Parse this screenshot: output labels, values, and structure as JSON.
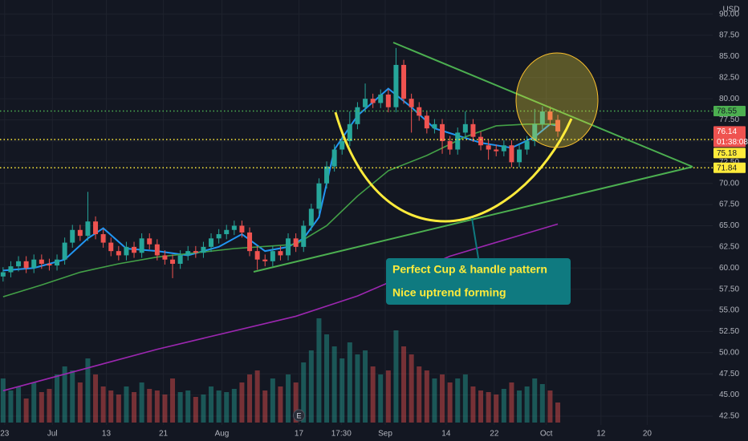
{
  "chart_data": {
    "type": "candlestick",
    "currency": "USD",
    "up_color": "#26a69a",
    "down_color": "#ef5350",
    "grid": true,
    "xlim": [
      -0.4,
      92.1
    ],
    "ylim": [
      39.56,
      91.67
    ],
    "yticks": [
      {
        "value": 42.5,
        "label": "42.50"
      },
      {
        "value": 45,
        "label": "45.00"
      },
      {
        "value": 47.5,
        "label": "47.50"
      },
      {
        "value": 50,
        "label": "50.00"
      },
      {
        "value": 52.5,
        "label": "52.50"
      },
      {
        "value": 55,
        "label": "55.00"
      },
      {
        "value": 57.5,
        "label": "57.50"
      },
      {
        "value": 60,
        "label": "60.00"
      },
      {
        "value": 62.5,
        "label": "62.50"
      },
      {
        "value": 65,
        "label": "65.00"
      },
      {
        "value": 67.5,
        "label": "67.50"
      },
      {
        "value": 70,
        "label": "70.00"
      },
      {
        "value": 72.5,
        "label": "72.50"
      },
      {
        "value": 75,
        "label": "75.00"
      },
      {
        "value": 77.5,
        "label": "77.50"
      },
      {
        "value": 80,
        "label": "80.00"
      },
      {
        "value": 82.5,
        "label": "82.50"
      },
      {
        "value": 85,
        "label": "85.00"
      },
      {
        "value": 87.5,
        "label": "87.50"
      },
      {
        "value": 90,
        "label": "90.00"
      }
    ],
    "xticks": [
      {
        "value": 0.2,
        "label": "23"
      },
      {
        "value": 6.4,
        "label": "Jul"
      },
      {
        "value": 13.4,
        "label": "13"
      },
      {
        "value": 20.8,
        "label": "21"
      },
      {
        "value": 28.4,
        "label": "Aug"
      },
      {
        "value": 38.4,
        "label": "17"
      },
      {
        "value": 43.9,
        "label": "17:30"
      },
      {
        "value": 49.6,
        "label": "Sep"
      },
      {
        "value": 57.5,
        "label": "14"
      },
      {
        "value": 63.75,
        "label": "22"
      },
      {
        "value": 70.5,
        "label": "Oct"
      },
      {
        "value": 77.6,
        "label": "12"
      },
      {
        "value": 83.6,
        "label": "20"
      }
    ],
    "candles": {
      "open": [
        59,
        59.5,
        60.2,
        60.8,
        60,
        61,
        60.5,
        60.3,
        61,
        63,
        64.5,
        63.8,
        65.5,
        64,
        63,
        62,
        61.5,
        62.5,
        61.8,
        63.5,
        62.8,
        61.5,
        61,
        60.5,
        61.5,
        62,
        61.8,
        62.5,
        63.5,
        64,
        64.5,
        65,
        64.2,
        62,
        61,
        60.8,
        62,
        61.5,
        63.5,
        62.5,
        65,
        67,
        70,
        72,
        74,
        75,
        77,
        79,
        80,
        79.5,
        80.5,
        79,
        84,
        80,
        79,
        78,
        76.5,
        77,
        75,
        74,
        76,
        77,
        75.5,
        74.5,
        74,
        73.8,
        74.5,
        72.5,
        74,
        75,
        77,
        78.5,
        77.5
      ],
      "high": [
        60.1,
        60.8,
        61.4,
        61.4,
        61.6,
        61.6,
        61.1,
        61.6,
        63.6,
        65.1,
        65.1,
        69,
        66.1,
        64.6,
        63.6,
        62.6,
        63.1,
        63.1,
        64.1,
        64.1,
        63.4,
        62.1,
        61.6,
        62.1,
        62.6,
        62.6,
        63.1,
        64.1,
        64.6,
        65.1,
        65.6,
        65.6,
        64.8,
        62.6,
        61.6,
        62.6,
        62.6,
        64.1,
        64.1,
        65.6,
        67.6,
        70.6,
        72.6,
        74.6,
        75.6,
        78.5,
        79.6,
        81.8,
        80.6,
        81.1,
        81.1,
        86,
        84.6,
        80.6,
        79.6,
        78.6,
        77.6,
        77.6,
        75.6,
        76.6,
        78.5,
        77.6,
        76.1,
        75.1,
        74.6,
        75.1,
        75.1,
        74.6,
        75.6,
        78.8,
        79.1,
        79.1,
        78.1
      ],
      "low": [
        58.4,
        58.9,
        59.6,
        59.4,
        59.4,
        59.9,
        59.7,
        59.7,
        60.4,
        62.4,
        63.2,
        63.2,
        63.4,
        62.4,
        61.4,
        60.9,
        60.9,
        61.2,
        61.2,
        62.2,
        60.9,
        60.4,
        58.8,
        59.9,
        60.9,
        61.2,
        61.2,
        61.9,
        62.9,
        63.4,
        63.9,
        63.6,
        61.4,
        59.8,
        60.2,
        60.2,
        60.9,
        60.9,
        61.9,
        61.9,
        64.4,
        66.4,
        69.4,
        71.4,
        73.4,
        74.4,
        76.4,
        78.4,
        78.9,
        78.9,
        78.4,
        78.4,
        79.4,
        76,
        77.4,
        75.9,
        75.9,
        73.5,
        73.4,
        73.4,
        75.4,
        74.9,
        73.9,
        72.8,
        73.2,
        73.2,
        71.9,
        71.9,
        73.4,
        74.4,
        76.4,
        76.9,
        75.5
      ],
      "close": [
        59.5,
        60.2,
        60.8,
        60,
        61,
        60.5,
        60.3,
        61,
        63,
        64.5,
        63.8,
        65.5,
        64,
        63,
        62,
        61.5,
        62.5,
        61.8,
        63.5,
        62.8,
        61.5,
        61,
        60.5,
        61.5,
        62,
        61.8,
        62.5,
        63.5,
        64,
        64.5,
        65,
        64.2,
        62,
        61,
        60.8,
        62,
        61.5,
        63.5,
        62.5,
        65,
        67,
        70,
        72,
        74,
        75,
        77,
        79,
        80,
        79.5,
        80.5,
        79,
        84,
        80,
        79,
        78,
        76.5,
        77,
        75,
        74,
        76,
        77,
        75.5,
        74.5,
        74,
        73.8,
        74.5,
        72.5,
        74,
        75,
        77,
        78.5,
        77.5,
        76.14
      ],
      "volume": [
        55,
        40,
        45,
        30,
        50,
        38,
        42,
        60,
        70,
        65,
        50,
        80,
        60,
        45,
        40,
        35,
        45,
        38,
        50,
        42,
        40,
        35,
        55,
        38,
        40,
        32,
        35,
        45,
        40,
        38,
        42,
        50,
        60,
        65,
        40,
        55,
        45,
        60,
        50,
        75,
        90,
        130,
        110,
        95,
        80,
        100,
        85,
        90,
        70,
        60,
        65,
        115,
        95,
        85,
        70,
        65,
        55,
        60,
        50,
        55,
        60,
        45,
        40,
        38,
        35,
        42,
        50,
        40,
        45,
        55,
        48,
        40,
        25
      ]
    },
    "lines": [
      {
        "color": "#2196f3",
        "x": [
          0,
          4,
          8,
          11,
          13,
          16,
          20,
          24,
          28,
          31,
          34,
          37,
          39,
          41,
          43,
          46,
          50,
          53,
          56,
          62,
          66,
          69,
          71,
          72
        ],
        "values": [
          59.7,
          60,
          61,
          63.5,
          64.7,
          62.3,
          62,
          61.5,
          62.5,
          64,
          62,
          62.5,
          63.5,
          66,
          74,
          78,
          81.2,
          79,
          76.5,
          74.8,
          74.2,
          75.5,
          77,
          76.8
        ]
      },
      {
        "color": "#43a047",
        "x": [
          0,
          5,
          10,
          15,
          20,
          25,
          30,
          38,
          42,
          46,
          50,
          55,
          60,
          64,
          68,
          72
        ],
        "values": [
          56.6,
          58,
          59.5,
          60.5,
          61.3,
          61.8,
          62.3,
          62.8,
          65,
          68.5,
          71.5,
          73.3,
          75.5,
          76.8,
          77,
          77
        ]
      },
      {
        "color": "#9c27b0",
        "x": [
          0,
          20,
          38,
          46,
          58,
          72
        ],
        "values": [
          45.5,
          50.4,
          54.3,
          56.7,
          61.4,
          65.2
        ]
      }
    ],
    "price_lines": [
      {
        "value": 78.55,
        "color": "#4caf50",
        "text_color": "#131722"
      },
      {
        "value": 76.14,
        "color": "#ef5350",
        "text_color": "#ffffff",
        "countdown": "01:38:08",
        "line": false
      },
      {
        "value": 75.18,
        "color": "#ffeb3b",
        "text_color": "#131722"
      },
      {
        "value": 71.84,
        "color": "#ffeb3b",
        "text_color": "#131722"
      }
    ],
    "earnings_marker": {
      "x": 38.4,
      "label": "E"
    },
    "annotation": {
      "lines": [
        "Perfect Cup &  handle pattern",
        "Nice uptrend forming"
      ]
    }
  }
}
